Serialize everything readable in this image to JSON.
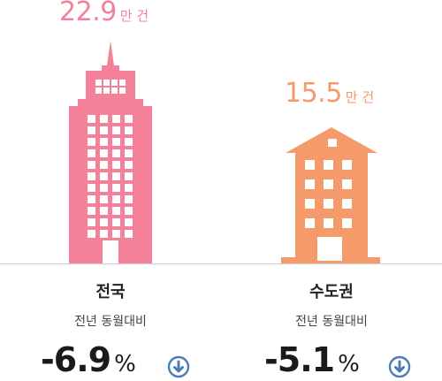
{
  "colors": {
    "national": "#f4819a",
    "capital": "#f59a6b",
    "arrow": "#4a7fb3"
  },
  "national": {
    "value": "22.9",
    "unit": "만 건",
    "name": "전국",
    "compare_label": "전년 동월대비",
    "change": "-6.9",
    "percent": "%",
    "direction_icon": "arrow-down-circle-icon"
  },
  "capital": {
    "value": "15.5",
    "unit": "만 건",
    "name": "수도권",
    "compare_label": "전년 동월대비",
    "change": "-5.1",
    "percent": "%",
    "direction_icon": "arrow-down-circle-icon"
  }
}
